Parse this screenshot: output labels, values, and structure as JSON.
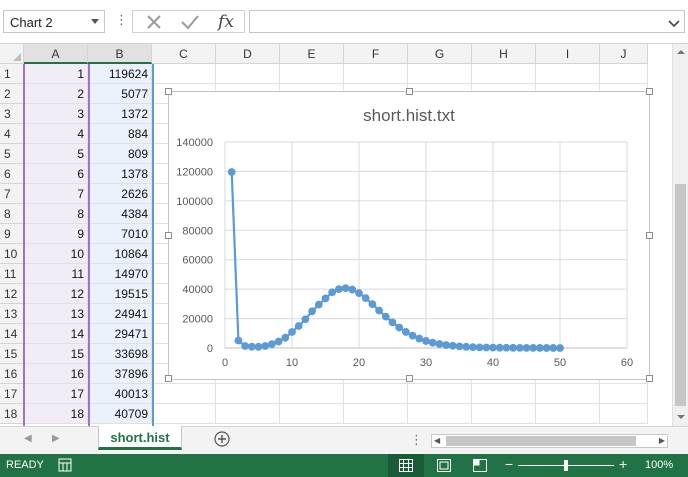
{
  "namebox": {
    "value": "Chart 2"
  },
  "formula_bar": {
    "fx_label": "fx",
    "value": ""
  },
  "columns": [
    "A",
    "B",
    "C",
    "D",
    "E",
    "F",
    "G",
    "H",
    "I",
    "J"
  ],
  "rows": [
    {
      "num": "1",
      "a": "1",
      "b": "119624"
    },
    {
      "num": "2",
      "a": "2",
      "b": "5077"
    },
    {
      "num": "3",
      "a": "3",
      "b": "1372"
    },
    {
      "num": "4",
      "a": "4",
      "b": "884"
    },
    {
      "num": "5",
      "a": "5",
      "b": "809"
    },
    {
      "num": "6",
      "a": "6",
      "b": "1378"
    },
    {
      "num": "7",
      "a": "7",
      "b": "2626"
    },
    {
      "num": "8",
      "a": "8",
      "b": "4384"
    },
    {
      "num": "9",
      "a": "9",
      "b": "7010"
    },
    {
      "num": "10",
      "a": "10",
      "b": "10864"
    },
    {
      "num": "11",
      "a": "11",
      "b": "14970"
    },
    {
      "num": "12",
      "a": "12",
      "b": "19515"
    },
    {
      "num": "13",
      "a": "13",
      "b": "24941"
    },
    {
      "num": "14",
      "a": "14",
      "b": "29471"
    },
    {
      "num": "15",
      "a": "15",
      "b": "33698"
    },
    {
      "num": "16",
      "a": "16",
      "b": "37896"
    },
    {
      "num": "17",
      "a": "17",
      "b": "40013"
    },
    {
      "num": "18",
      "a": "18",
      "b": "40709"
    }
  ],
  "chart_data": {
    "type": "scatter",
    "title": "short.hist.txt",
    "xlabel": "",
    "ylabel": "",
    "xlim": [
      0,
      60
    ],
    "ylim": [
      0,
      140000
    ],
    "xticks": [
      "0",
      "10",
      "20",
      "30",
      "40",
      "50",
      "60"
    ],
    "yticks": [
      "0",
      "20000",
      "40000",
      "60000",
      "80000",
      "100000",
      "120000",
      "140000"
    ],
    "grid": true,
    "line_color": "#5b9bd5",
    "series": [
      {
        "x": [
          1,
          2,
          3,
          4,
          5,
          6,
          7,
          8,
          9,
          10,
          11,
          12,
          13,
          14,
          15,
          16,
          17,
          18,
          19,
          20,
          21,
          22,
          23,
          24,
          25,
          26,
          27,
          28,
          29,
          30,
          31,
          32,
          33,
          34,
          35,
          36,
          37,
          38,
          39,
          40,
          41,
          42,
          43,
          44,
          45,
          46,
          47,
          48,
          49,
          50
        ],
        "y": [
          119624,
          5077,
          1372,
          884,
          809,
          1378,
          2626,
          4384,
          7010,
          10864,
          14970,
          19515,
          24941,
          29471,
          33698,
          37896,
          40013,
          40709,
          39700,
          37300,
          33900,
          29800,
          25500,
          21300,
          17400,
          13900,
          10900,
          8400,
          6400,
          4800,
          3600,
          2700,
          2000,
          1500,
          1100,
          800,
          600,
          450,
          340,
          260,
          200,
          160,
          130,
          100,
          80,
          60,
          50,
          40,
          30,
          20
        ]
      }
    ]
  },
  "sheet_tab": "short.hist",
  "status": {
    "ready": "READY",
    "zoom": "100%"
  },
  "colors": {
    "accent": "#217346",
    "series": "#5b9bd5"
  }
}
